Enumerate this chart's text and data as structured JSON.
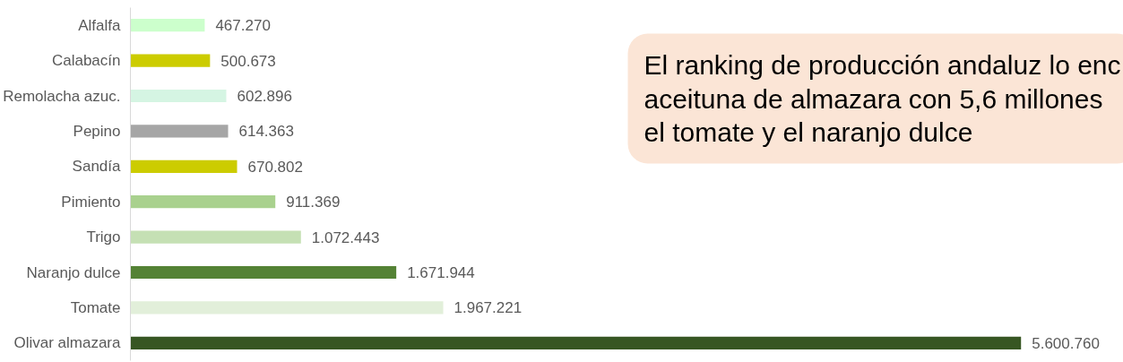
{
  "chart_data": {
    "type": "bar",
    "orientation": "horizontal",
    "categories": [
      "Alfalfa",
      "Calabacín",
      "Remolacha azuc.",
      "Pepino",
      "Sandía",
      "Pimiento",
      "Trigo",
      "Naranjo dulce",
      "Tomate",
      "Olivar almazara"
    ],
    "values": [
      467270,
      500673,
      602896,
      614363,
      670802,
      911369,
      1072443,
      1671944,
      1967221,
      5600760
    ],
    "colors": [
      "#ccffcc",
      "#cccc00",
      "#d5f5e3",
      "#a6a6a6",
      "#cccc00",
      "#a9d18e",
      "#c5e0b4",
      "#548235",
      "#e2efda",
      "#375623"
    ],
    "value_labels": [
      "467.270",
      "500.673",
      "602.896",
      "614.363",
      "670.802",
      "911.369",
      "1.072.443",
      "1.671.944",
      "1.967.221",
      "5.600.760"
    ],
    "annotations": [
      "El ranking de producción andaluz lo enc\naceituna de almazara con 5,6 millones\nel tomate y el naranjo dulce"
    ]
  }
}
